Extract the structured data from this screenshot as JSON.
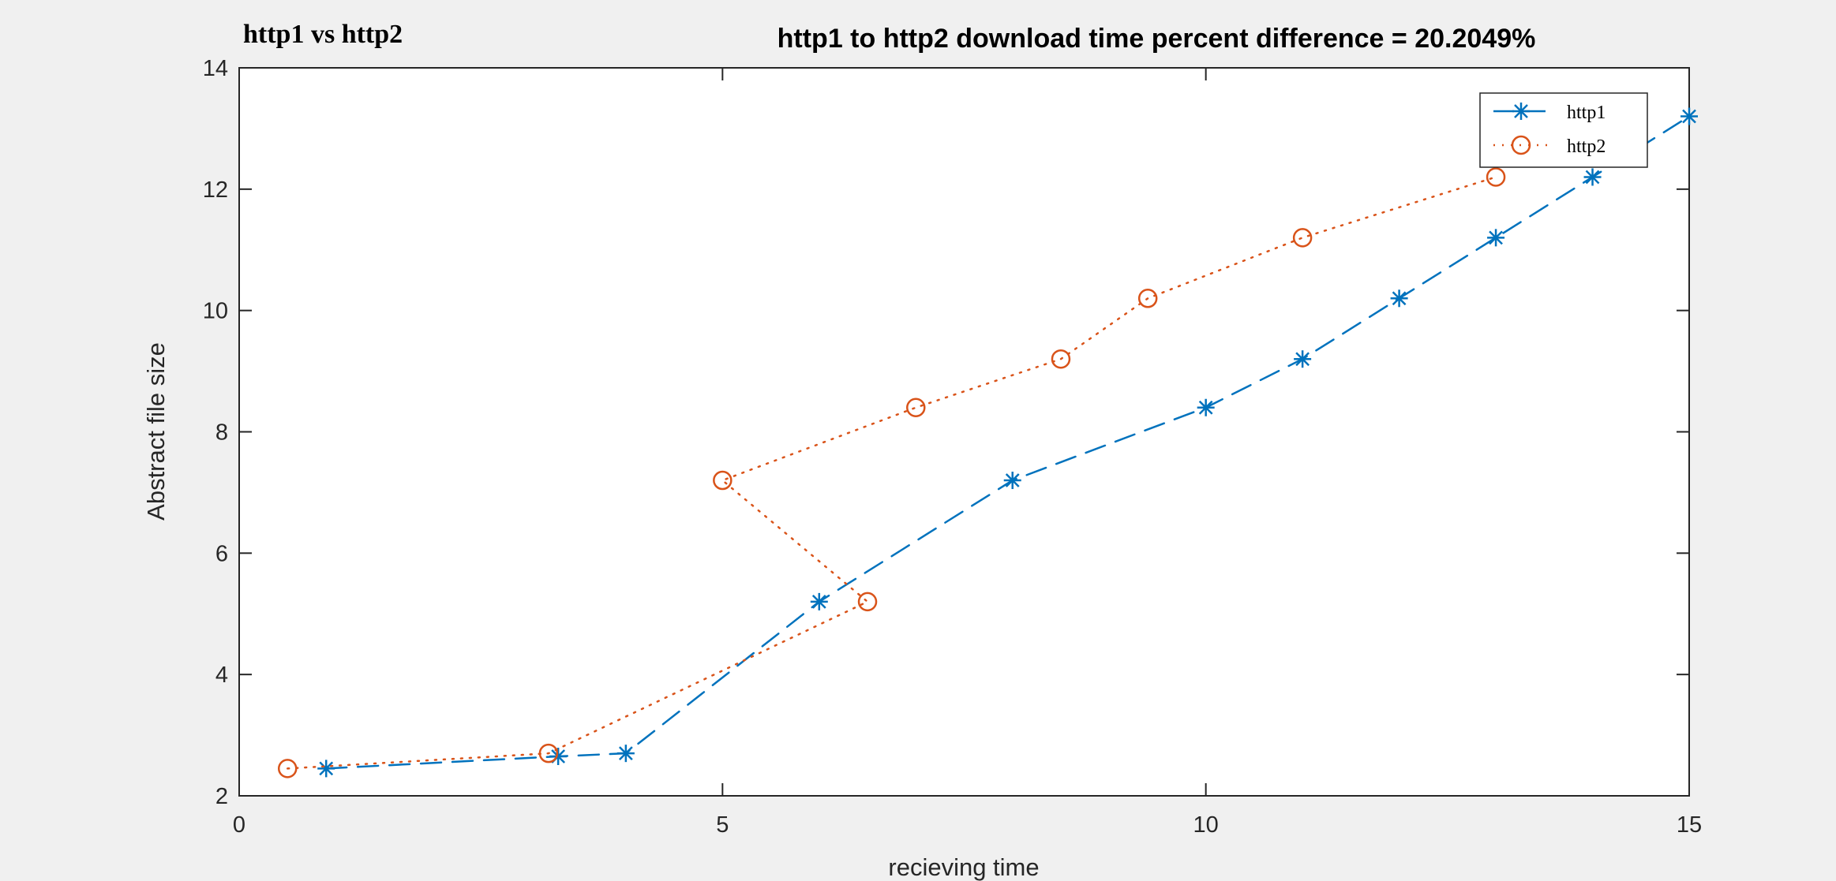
{
  "window": {
    "corner_title": "http1 vs http2"
  },
  "chart_data": {
    "type": "line",
    "title": "http1 to  http2  download time percent difference = 20.2049%",
    "xlabel": "recieving time",
    "ylabel": "Abstract file size",
    "xlim": [
      0,
      15
    ],
    "ylim": [
      2,
      14
    ],
    "xticks": [
      0,
      5,
      10,
      15
    ],
    "yticks": [
      2,
      4,
      6,
      8,
      10,
      12,
      14
    ],
    "grid": false,
    "legend_position": "top-right",
    "series": [
      {
        "name": "http1",
        "color": "#0072bd",
        "line_style": "dashed",
        "marker": "asterisk",
        "x": [
          0.9,
          3.3,
          4,
          6,
          8,
          10,
          11,
          12,
          13,
          14,
          15
        ],
        "y": [
          2.45,
          2.65,
          2.7,
          5.2,
          7.2,
          8.4,
          9.2,
          10.2,
          11.2,
          12.2,
          13.2
        ]
      },
      {
        "name": "http2",
        "color": "#d95319",
        "line_style": "dotted",
        "marker": "circle",
        "x": [
          0.5,
          3.2,
          6.5,
          5,
          7,
          8.5,
          9.4,
          11,
          13
        ],
        "y": [
          2.45,
          2.7,
          5.2,
          7.2,
          8.4,
          9.2,
          10.2,
          11.2,
          12.2
        ]
      }
    ]
  }
}
